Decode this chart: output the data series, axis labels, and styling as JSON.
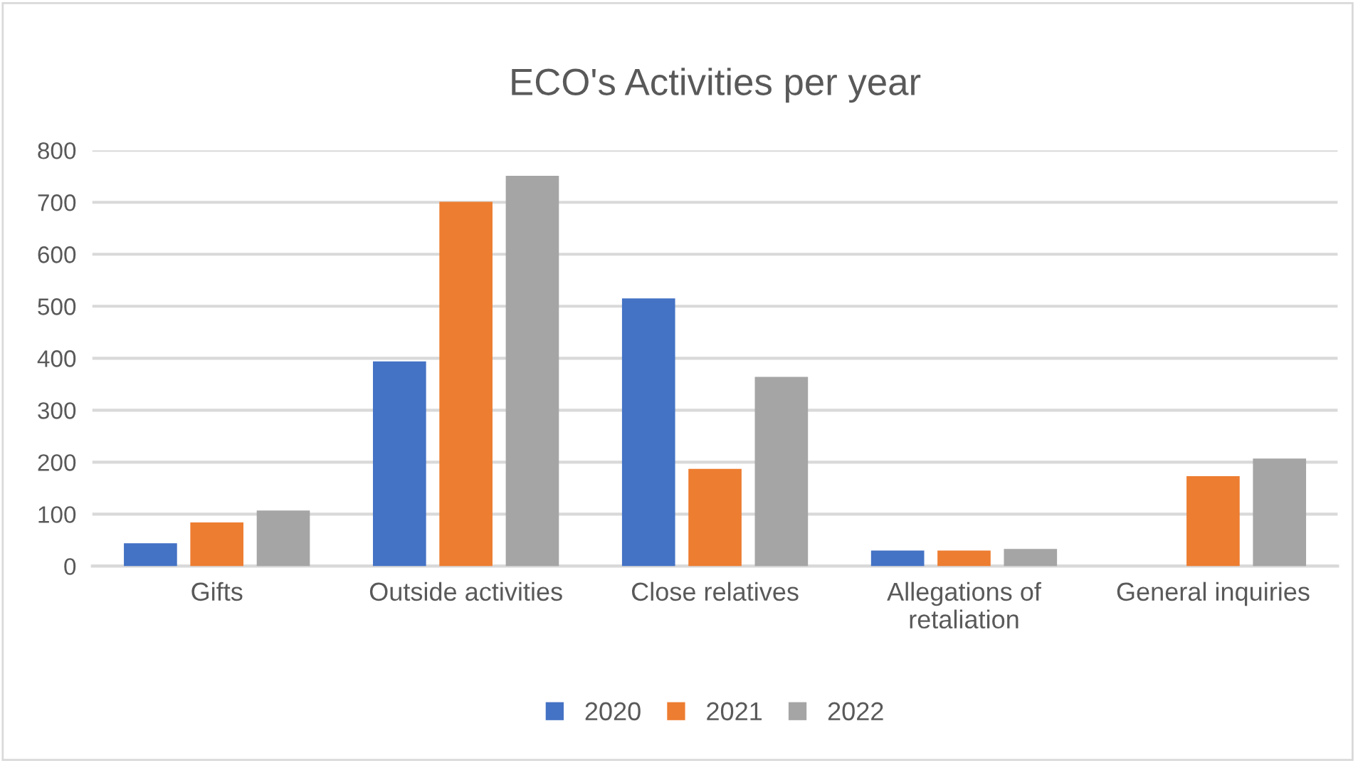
{
  "chart_data": {
    "type": "bar",
    "title": "ECO's Activities per year",
    "categories": [
      "Gifts",
      "Outside activities",
      "Close relatives",
      "Allegations of\nretaliation",
      "General inquiries"
    ],
    "series": [
      {
        "name": "2020",
        "color": "#4472c4",
        "values": [
          44,
          394,
          515,
          30,
          null
        ]
      },
      {
        "name": "2021",
        "color": "#ed7d31",
        "values": [
          84,
          701,
          187,
          30,
          173
        ]
      },
      {
        "name": "2022",
        "color": "#a5a5a5",
        "values": [
          107,
          751,
          364,
          33,
          207
        ]
      }
    ],
    "ylim": [
      0,
      800
    ],
    "yticks": [
      0,
      100,
      200,
      300,
      400,
      500,
      600,
      700,
      800
    ],
    "grid": "y",
    "legend": "bottom"
  }
}
